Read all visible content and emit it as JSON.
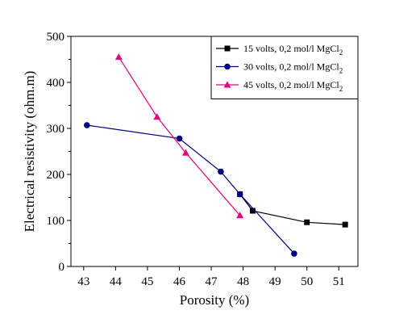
{
  "chart_data": {
    "type": "line",
    "xlabel": "Porosity (%)",
    "ylabel": "Electrical resistivity (ohm.m)",
    "xlim": [
      42.6,
      51.6
    ],
    "ylim": [
      0,
      500
    ],
    "xticks": [
      43,
      44,
      45,
      46,
      47,
      48,
      49,
      50,
      51
    ],
    "yticks": [
      0,
      100,
      200,
      300,
      400,
      500
    ],
    "legend_position": "top-right",
    "series": [
      {
        "name": "15 volts, 0,2 mol/l MgCl",
        "name_subscript": "2",
        "color": "#000000",
        "marker": "square",
        "x": [
          47.9,
          48.3,
          50.0,
          51.2
        ],
        "y": [
          157,
          121,
          96,
          91
        ]
      },
      {
        "name": "30 volts, 0,2 mol/l MgCl",
        "name_subscript": "2",
        "color": "#000080",
        "marker": "circle",
        "x": [
          43.1,
          46.0,
          47.3,
          47.9,
          49.6
        ],
        "y": [
          307,
          278,
          206,
          157,
          28
        ]
      },
      {
        "name": "45 volts, 0,2 mol/l MgCl",
        "name_subscript": "2",
        "color": "#e6007e",
        "marker": "triangle",
        "x": [
          44.1,
          45.3,
          46.2,
          47.9
        ],
        "y": [
          455,
          325,
          247,
          111
        ]
      }
    ]
  }
}
